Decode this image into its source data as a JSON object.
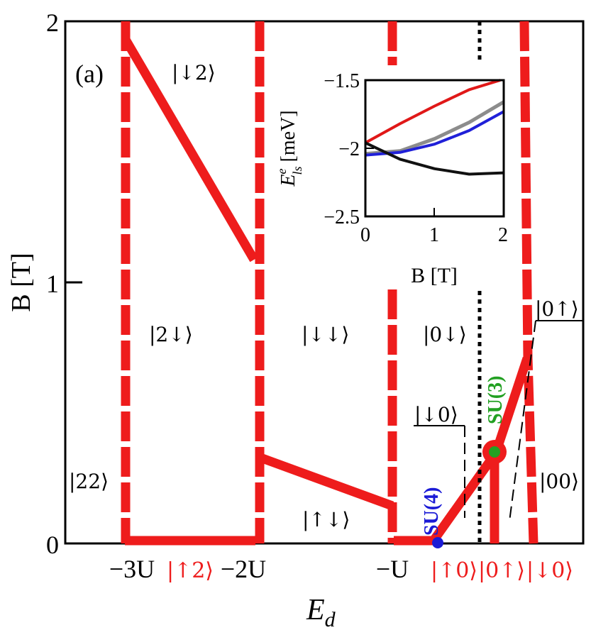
{
  "chart_data": {
    "type": "line",
    "panel_label": "(a)",
    "xlabel": "E",
    "xlabel_sub": "d",
    "ylabel": "B [T]",
    "ylim": [
      0,
      2
    ],
    "yticks": [
      "0",
      "1",
      "2"
    ],
    "xtick_labels": {
      "minus3U": "−3U",
      "minus2U": "−2U",
      "minusU": "−U"
    },
    "red_tick_labels": {
      "up2": "|↑2⟩",
      "up0": "|↑0⟩",
      "zero_up": "|0↑⟩",
      "down0": "|↓0⟩"
    },
    "state_labels": {
      "d2": "|↓2⟩",
      "two_down": "|2↓⟩",
      "dd": "|↓↓⟩",
      "zero_down": "|0↓⟩",
      "twotwo": "|22⟩",
      "ud": "|↑↓⟩",
      "zerozero": "|00⟩",
      "down0_inner": "|↓0⟩",
      "zero_up_inner": "|0↑⟩"
    },
    "points": {
      "su4": "SU(4)",
      "su3": "SU(3)"
    },
    "colors": {
      "boundary": "#ee1c1c",
      "su4": "#1a1ad6",
      "su3": "#22a022",
      "dotted": "#000000"
    },
    "inset": {
      "xlabel": "B [T]",
      "ylabel_main": "E",
      "ylabel_sup": "e",
      "ylabel_sub": "ls",
      "ylabel_unit": "[meV]",
      "xlim": [
        0,
        2
      ],
      "ylim": [
        -2.5,
        -1.5
      ],
      "xticks": [
        "0",
        "1",
        "2"
      ],
      "yticks": [
        "−2.5",
        "−2",
        "−1.5"
      ],
      "series": [
        {
          "color": "#e01818",
          "x": [
            0,
            0.5,
            1.0,
            1.5,
            1.95
          ],
          "y": [
            -1.96,
            -1.82,
            -1.69,
            -1.57,
            -1.5
          ]
        },
        {
          "color": "#8c8c8c",
          "x": [
            0,
            0.5,
            1.0,
            1.5,
            2.0
          ],
          "y": [
            -2.04,
            -2.02,
            -1.93,
            -1.81,
            -1.66
          ]
        },
        {
          "color": "#2020d8",
          "x": [
            0,
            0.5,
            1.0,
            1.5,
            2.0
          ],
          "y": [
            -2.05,
            -2.03,
            -1.97,
            -1.87,
            -1.73
          ]
        },
        {
          "color": "#111111",
          "x": [
            0,
            0.5,
            1.0,
            1.5,
            2.0
          ],
          "y": [
            -1.96,
            -2.08,
            -2.15,
            -2.19,
            -2.18
          ]
        }
      ]
    }
  }
}
